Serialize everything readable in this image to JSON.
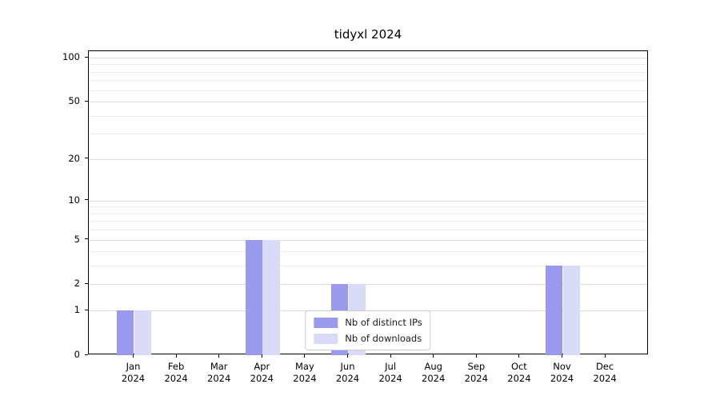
{
  "chart_data": {
    "type": "bar",
    "title": "tidyxl 2024",
    "categories": [
      "Jan 2024",
      "Feb 2024",
      "Mar 2024",
      "Apr 2024",
      "May 2024",
      "Jun 2024",
      "Jul 2024",
      "Aug 2024",
      "Sep 2024",
      "Oct 2024",
      "Nov 2024",
      "Dec 2024"
    ],
    "series": [
      {
        "name": "Nb of distinct IPs",
        "color": "#9999ed",
        "values": [
          1,
          0,
          0,
          5,
          0,
          2,
          0,
          0,
          0,
          0,
          3,
          0
        ]
      },
      {
        "name": "Nb of downloads",
        "color": "#d9d9f8",
        "values": [
          1,
          0,
          0,
          5,
          0,
          2,
          0,
          0,
          0,
          0,
          3,
          0
        ]
      }
    ],
    "xlabel": "",
    "ylabel": "",
    "yscale": "log1p",
    "yticks": [
      0,
      1,
      2,
      5,
      10,
      20,
      50,
      100
    ],
    "minor_yticks": [
      3,
      4,
      6,
      7,
      8,
      9,
      30,
      40,
      60,
      70,
      80,
      90
    ],
    "ylim": [
      0,
      111
    ],
    "grid": "horizontal",
    "legend_position": "lower center"
  }
}
